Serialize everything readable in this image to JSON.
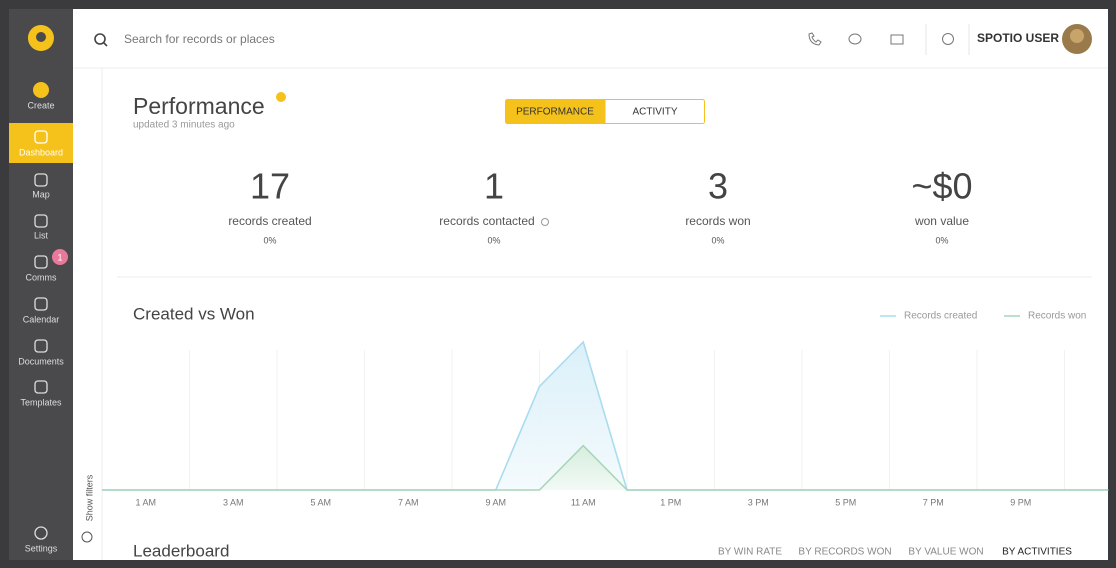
{
  "sidebar": {
    "items": [
      "Create",
      "Dashboard",
      "Map",
      "List",
      "Comms",
      "Calendar",
      "Documents",
      "Templates"
    ],
    "badge": "1",
    "settings": "Settings"
  },
  "topbar": {
    "search_placeholder": "Search for records or places",
    "user": "SPOTIO USER"
  },
  "show_filters": "Show filters",
  "header": {
    "title": "Performance",
    "subtitle": "updated 3 minutes ago",
    "tabs": [
      "PERFORMANCE",
      "ACTIVITY"
    ]
  },
  "stats": [
    {
      "value": 17,
      "label": "records created",
      "change": "0%"
    },
    {
      "value": 1,
      "label": "records contacted",
      "change": "0%"
    },
    {
      "value": 3,
      "label": "records won",
      "change": "0%"
    },
    {
      "value": "~$0",
      "label": "won value",
      "change": "0%"
    }
  ],
  "chart_data": {
    "type": "line",
    "title": "Created vs Won",
    "categories": [
      null,
      "1 AM",
      null,
      "3 AM",
      null,
      "5 AM",
      null,
      "7 AM",
      null,
      "9 AM",
      null,
      "11 AM",
      null,
      "1 PM",
      null,
      "3 PM",
      null,
      "5 PM",
      null,
      "7 PM",
      null,
      "9 PM",
      null,
      null
    ],
    "series": [
      {
        "name": "Records created",
        "color": "#a9dcee",
        "values": [
          0,
          0,
          0,
          0,
          0,
          0,
          0,
          0,
          0,
          0,
          7,
          10,
          0,
          0,
          0,
          0,
          0,
          0,
          0,
          0,
          0,
          0,
          0,
          0
        ]
      },
      {
        "name": "Records won",
        "color": "#a8d5b8",
        "values": [
          0,
          0,
          0,
          0,
          0,
          0,
          0,
          0,
          0,
          0,
          0,
          3,
          0,
          0,
          0,
          0,
          0,
          0,
          0,
          0,
          0,
          0,
          0,
          0
        ]
      }
    ],
    "ylim": [
      0,
      10
    ]
  },
  "leaderboard": {
    "title": "Leaderboard",
    "tabs": [
      "BY WIN RATE",
      "BY RECORDS WON",
      "BY VALUE WON",
      "BY ACTIVITIES"
    ]
  }
}
